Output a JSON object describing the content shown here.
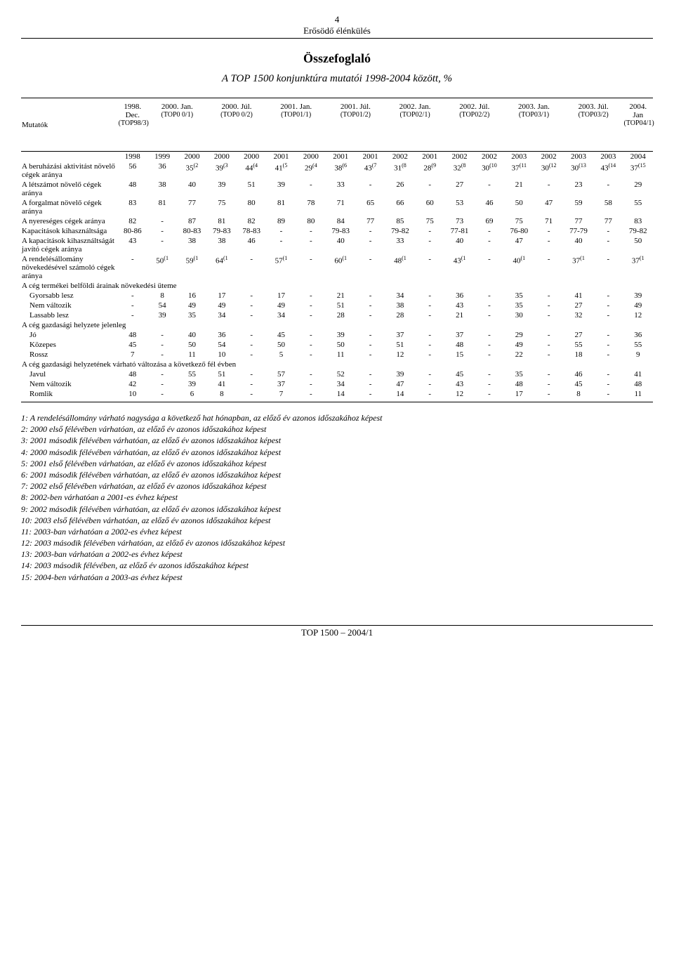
{
  "page_number": "4",
  "running_header": "Erősödő élénkülés",
  "title": "Összefoglaló",
  "subtitle": "A TOP 1500 konjunktúra mutatói 1998-2004 között, %",
  "footer": "TOP 1500 – 2004/1",
  "header": {
    "mutatok": "Mutatók",
    "cols": [
      {
        "line1": "1998. Dec.",
        "line2": "(TOP98/3)"
      },
      {
        "line1": "2000. Jan.",
        "line2": "(TOP0 0/1)"
      },
      {
        "line1": "2000. Júl.",
        "line2": "(TOP0 0/2)"
      },
      {
        "line1": "2001. Jan.",
        "line2": "(TOP01/1)"
      },
      {
        "line1": "2001. Júl.",
        "line2": "(TOP01/2)"
      },
      {
        "line1": "2002. Jan.",
        "line2": "(TOP02/1)"
      },
      {
        "line1": "2002. Júl.",
        "line2": "(TOP02/2)"
      },
      {
        "line1": "2003. Jan.",
        "line2": "(TOP03/1)"
      },
      {
        "line1": "2003. Júl.",
        "line2": "(TOP03/2)"
      },
      {
        "line1": "2004. Jan",
        "line2": "(TOP04/1)"
      }
    ]
  },
  "year_row": [
    "1998",
    "1999",
    "2000",
    "2000",
    "2000",
    "2001",
    "2000",
    "2001",
    "2001",
    "2002",
    "2001",
    "2002",
    "2002",
    "2003",
    "2002",
    "2003",
    "2003",
    "2004"
  ],
  "rows_main": [
    {
      "label": "A beruházási aktivitást növelő cégek aránya",
      "cells": [
        {
          "v": "56"
        },
        {
          "v": "36"
        },
        {
          "v": "35",
          "s": "(2"
        },
        {
          "v": "39",
          "s": "(3"
        },
        {
          "v": "44",
          "s": "(4"
        },
        {
          "v": "41",
          "s": "(5"
        },
        {
          "v": "29",
          "s": "(4"
        },
        {
          "v": "38",
          "s": "(6"
        },
        {
          "v": "43",
          "s": "(7"
        },
        {
          "v": "31",
          "s": "(8"
        },
        {
          "v": "28",
          "s": "(9"
        },
        {
          "v": "32",
          "s": "(8"
        },
        {
          "v": "30",
          "s": "(10"
        },
        {
          "v": "37",
          "s": "(11"
        },
        {
          "v": "30",
          "s": "(12"
        },
        {
          "v": "30",
          "s": "(13"
        },
        {
          "v": "43",
          "s": "(14"
        },
        {
          "v": "37",
          "s": "(15"
        }
      ]
    },
    {
      "label": "A létszámot növelő cégek aránya",
      "cells": [
        {
          "v": "48"
        },
        {
          "v": "38"
        },
        {
          "v": "40"
        },
        {
          "v": "39"
        },
        {
          "v": "51"
        },
        {
          "v": "39"
        },
        {
          "v": "-"
        },
        {
          "v": "33"
        },
        {
          "v": "-"
        },
        {
          "v": "26"
        },
        {
          "v": "-"
        },
        {
          "v": "27"
        },
        {
          "v": "-"
        },
        {
          "v": "21"
        },
        {
          "v": "-"
        },
        {
          "v": "23"
        },
        {
          "v": "-"
        },
        {
          "v": "29"
        }
      ]
    },
    {
      "label": "A forgalmat növelő cégek aránya",
      "cells": [
        {
          "v": "83"
        },
        {
          "v": "81"
        },
        {
          "v": "77"
        },
        {
          "v": "75"
        },
        {
          "v": "80"
        },
        {
          "v": "81"
        },
        {
          "v": "78"
        },
        {
          "v": "71"
        },
        {
          "v": "65"
        },
        {
          "v": "66"
        },
        {
          "v": "60"
        },
        {
          "v": "53"
        },
        {
          "v": "46"
        },
        {
          "v": "50"
        },
        {
          "v": "47"
        },
        {
          "v": "59"
        },
        {
          "v": "58"
        },
        {
          "v": "55"
        }
      ]
    },
    {
      "label": "A nyereséges cégek aránya",
      "cells": [
        {
          "v": "82"
        },
        {
          "v": "-"
        },
        {
          "v": "87"
        },
        {
          "v": "81"
        },
        {
          "v": "82"
        },
        {
          "v": "89"
        },
        {
          "v": "80"
        },
        {
          "v": "84"
        },
        {
          "v": "77"
        },
        {
          "v": "85"
        },
        {
          "v": "75"
        },
        {
          "v": "73"
        },
        {
          "v": "69"
        },
        {
          "v": "75"
        },
        {
          "v": "71"
        },
        {
          "v": "77"
        },
        {
          "v": "77"
        },
        {
          "v": "83"
        }
      ]
    },
    {
      "label": "Kapacitások kihasználtsága",
      "cells": [
        {
          "v": "80-86"
        },
        {
          "v": "-"
        },
        {
          "v": "80-83"
        },
        {
          "v": "79-83"
        },
        {
          "v": "78-83"
        },
        {
          "v": "-"
        },
        {
          "v": "-"
        },
        {
          "v": "79-83"
        },
        {
          "v": "-"
        },
        {
          "v": "79-82"
        },
        {
          "v": "-"
        },
        {
          "v": "77-81"
        },
        {
          "v": "-"
        },
        {
          "v": "76-80"
        },
        {
          "v": "-"
        },
        {
          "v": "77-79"
        },
        {
          "v": "-"
        },
        {
          "v": "79-82"
        }
      ]
    },
    {
      "label": "A kapacitások kihasználtságát javító cégek aránya",
      "cells": [
        {
          "v": "43"
        },
        {
          "v": "-"
        },
        {
          "v": "38"
        },
        {
          "v": "38"
        },
        {
          "v": "46"
        },
        {
          "v": "-"
        },
        {
          "v": "-"
        },
        {
          "v": "40"
        },
        {
          "v": "-"
        },
        {
          "v": "33"
        },
        {
          "v": "-"
        },
        {
          "v": "40"
        },
        {
          "v": "-"
        },
        {
          "v": "47"
        },
        {
          "v": "-"
        },
        {
          "v": "40"
        },
        {
          "v": "-"
        },
        {
          "v": "50"
        }
      ]
    },
    {
      "label": "A rendelésállomány növekedésével számoló cégek aránya",
      "cells": [
        {
          "v": "-"
        },
        {
          "v": "50",
          "s": "(1"
        },
        {
          "v": "59",
          "s": "(1"
        },
        {
          "v": "64",
          "s": "(1"
        },
        {
          "v": "-"
        },
        {
          "v": "57",
          "s": "(1"
        },
        {
          "v": "-"
        },
        {
          "v": "60",
          "s": "(1"
        },
        {
          "v": "-"
        },
        {
          "v": "48",
          "s": "(1"
        },
        {
          "v": "-"
        },
        {
          "v": "43",
          "s": "(1"
        },
        {
          "v": "-"
        },
        {
          "v": "40",
          "s": "(1"
        },
        {
          "v": "-"
        },
        {
          "v": "37",
          "s": "(1"
        },
        {
          "v": "-"
        },
        {
          "v": "37",
          "s": "(1"
        }
      ]
    }
  ],
  "product_header": "A cég termékei belföldi árainak növekedési üteme",
  "rows_products": [
    {
      "label": "Gyorsabb lesz",
      "cells": [
        {
          "v": "-"
        },
        {
          "v": "8"
        },
        {
          "v": "16"
        },
        {
          "v": "17"
        },
        {
          "v": "-"
        },
        {
          "v": "17"
        },
        {
          "v": "-"
        },
        {
          "v": "21"
        },
        {
          "v": "-"
        },
        {
          "v": "34"
        },
        {
          "v": "-"
        },
        {
          "v": "36"
        },
        {
          "v": "-"
        },
        {
          "v": "35"
        },
        {
          "v": "-"
        },
        {
          "v": "41"
        },
        {
          "v": "-"
        },
        {
          "v": "39"
        }
      ]
    },
    {
      "label": "Nem változik",
      "cells": [
        {
          "v": "-"
        },
        {
          "v": "54"
        },
        {
          "v": "49"
        },
        {
          "v": "49"
        },
        {
          "v": "-"
        },
        {
          "v": "49"
        },
        {
          "v": "-"
        },
        {
          "v": "51"
        },
        {
          "v": "-"
        },
        {
          "v": "38"
        },
        {
          "v": "-"
        },
        {
          "v": "43"
        },
        {
          "v": "-"
        },
        {
          "v": "35"
        },
        {
          "v": "-"
        },
        {
          "v": "27"
        },
        {
          "v": "-"
        },
        {
          "v": "49"
        }
      ]
    },
    {
      "label": "Lassabb lesz",
      "cells": [
        {
          "v": "-"
        },
        {
          "v": "39"
        },
        {
          "v": "35"
        },
        {
          "v": "34"
        },
        {
          "v": "-"
        },
        {
          "v": "34"
        },
        {
          "v": "-"
        },
        {
          "v": "28"
        },
        {
          "v": "-"
        },
        {
          "v": "28"
        },
        {
          "v": "-"
        },
        {
          "v": "21"
        },
        {
          "v": "-"
        },
        {
          "v": "30"
        },
        {
          "v": "-"
        },
        {
          "v": "32"
        },
        {
          "v": "-"
        },
        {
          "v": "12"
        }
      ]
    }
  ],
  "econ_header": "A cég gazdasági helyzete jelenleg",
  "rows_econ": [
    {
      "label": "Jó",
      "cells": [
        {
          "v": "48"
        },
        {
          "v": "-"
        },
        {
          "v": "40"
        },
        {
          "v": "36"
        },
        {
          "v": "-"
        },
        {
          "v": "45"
        },
        {
          "v": "-"
        },
        {
          "v": "39"
        },
        {
          "v": "-"
        },
        {
          "v": "37"
        },
        {
          "v": "-"
        },
        {
          "v": "37"
        },
        {
          "v": "-"
        },
        {
          "v": "29"
        },
        {
          "v": "-"
        },
        {
          "v": "27"
        },
        {
          "v": "-"
        },
        {
          "v": "36"
        }
      ]
    },
    {
      "label": "Közepes",
      "cells": [
        {
          "v": "45"
        },
        {
          "v": "-"
        },
        {
          "v": "50"
        },
        {
          "v": "54"
        },
        {
          "v": "-"
        },
        {
          "v": "50"
        },
        {
          "v": "-"
        },
        {
          "v": "50"
        },
        {
          "v": "-"
        },
        {
          "v": "51"
        },
        {
          "v": "-"
        },
        {
          "v": "48"
        },
        {
          "v": "-"
        },
        {
          "v": "49"
        },
        {
          "v": "-"
        },
        {
          "v": "55"
        },
        {
          "v": "-"
        },
        {
          "v": "55"
        }
      ]
    },
    {
      "label": "Rossz",
      "cells": [
        {
          "v": "7"
        },
        {
          "v": "-"
        },
        {
          "v": "11"
        },
        {
          "v": "10"
        },
        {
          "v": "-"
        },
        {
          "v": "5"
        },
        {
          "v": "-"
        },
        {
          "v": "11"
        },
        {
          "v": "-"
        },
        {
          "v": "12"
        },
        {
          "v": "-"
        },
        {
          "v": "15"
        },
        {
          "v": "-"
        },
        {
          "v": "22"
        },
        {
          "v": "-"
        },
        {
          "v": "18"
        },
        {
          "v": "-"
        },
        {
          "v": "9"
        }
      ]
    }
  ],
  "future_header": "A cég gazdasági helyzetének várható változása a következő fél évben",
  "rows_future": [
    {
      "label": "Javul",
      "cells": [
        {
          "v": "48"
        },
        {
          "v": "-"
        },
        {
          "v": "55"
        },
        {
          "v": "51"
        },
        {
          "v": "-"
        },
        {
          "v": "57"
        },
        {
          "v": "-"
        },
        {
          "v": "52"
        },
        {
          "v": "-"
        },
        {
          "v": "39"
        },
        {
          "v": "-"
        },
        {
          "v": "45"
        },
        {
          "v": "-"
        },
        {
          "v": "35"
        },
        {
          "v": "-"
        },
        {
          "v": "46"
        },
        {
          "v": "-"
        },
        {
          "v": "41"
        }
      ]
    },
    {
      "label": "Nem változik",
      "cells": [
        {
          "v": "42"
        },
        {
          "v": "-"
        },
        {
          "v": "39"
        },
        {
          "v": "41"
        },
        {
          "v": "-"
        },
        {
          "v": "37"
        },
        {
          "v": "-"
        },
        {
          "v": "34"
        },
        {
          "v": "-"
        },
        {
          "v": "47"
        },
        {
          "v": "-"
        },
        {
          "v": "43"
        },
        {
          "v": "-"
        },
        {
          "v": "48"
        },
        {
          "v": "-"
        },
        {
          "v": "45"
        },
        {
          "v": "-"
        },
        {
          "v": "48"
        }
      ]
    },
    {
      "label": "Romlik",
      "cells": [
        {
          "v": "10"
        },
        {
          "v": "-"
        },
        {
          "v": "6"
        },
        {
          "v": "8"
        },
        {
          "v": "-"
        },
        {
          "v": "7"
        },
        {
          "v": "-"
        },
        {
          "v": "14"
        },
        {
          "v": "-"
        },
        {
          "v": "14"
        },
        {
          "v": "-"
        },
        {
          "v": "12"
        },
        {
          "v": "-"
        },
        {
          "v": "17"
        },
        {
          "v": "-"
        },
        {
          "v": "8"
        },
        {
          "v": "-"
        },
        {
          "v": "11"
        }
      ]
    }
  ],
  "footnotes": [
    "1: A rendelésállomány várható nagysága a következő hat hónapban, az előző év azonos időszakához képest",
    "2: 2000 első félévében várhatóan, az előző év azonos időszakához képest",
    "3: 2001 második félévében várhatóan, az előző év azonos időszakához képest",
    "4: 2000 második félévében várhatóan, az előző év azonos időszakához képest",
    "5: 2001 első félévében várhatóan, az előző év azonos időszakához képest",
    "6: 2001 második félévében várhatóan, az előző év azonos időszakához képest",
    "7: 2002 első félévében várhatóan, az előző év azonos időszakához képest",
    "8: 2002-ben várhatóan a 2001-es évhez képest",
    "9: 2002 második félévében várhatóan, az előző év azonos időszakához képest",
    "10: 2003 első félévében várhatóan, az előző év azonos időszakához képest",
    "11: 2003-ban várhatóan a 2002-es évhez képest",
    "12: 2003 második félévében várhatóan, az előző év azonos időszakához képest",
    "13: 2003-ban várhatóan a 2002-es évhez képest",
    "14: 2003 második félévében, az előző év azonos időszakához képest",
    "15: 2004-ben várhatóan a 2003-as évhez képest"
  ]
}
